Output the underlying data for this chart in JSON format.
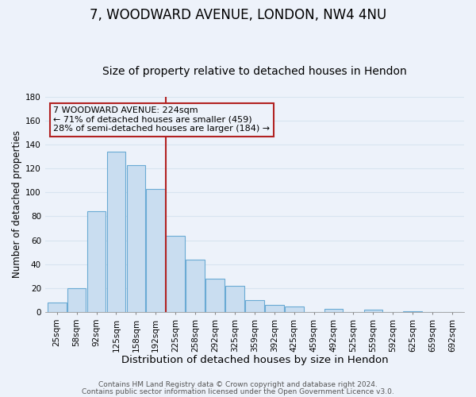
{
  "title1": "7, WOODWARD AVENUE, LONDON, NW4 4NU",
  "title2": "Size of property relative to detached houses in Hendon",
  "xlabel": "Distribution of detached houses by size in Hendon",
  "ylabel": "Number of detached properties",
  "bar_labels": [
    "25sqm",
    "58sqm",
    "92sqm",
    "125sqm",
    "158sqm",
    "192sqm",
    "225sqm",
    "258sqm",
    "292sqm",
    "325sqm",
    "359sqm",
    "392sqm",
    "425sqm",
    "459sqm",
    "492sqm",
    "525sqm",
    "559sqm",
    "592sqm",
    "625sqm",
    "659sqm",
    "692sqm"
  ],
  "bar_values": [
    8,
    20,
    84,
    134,
    123,
    103,
    64,
    44,
    28,
    22,
    10,
    6,
    5,
    0,
    3,
    0,
    2,
    0,
    1,
    0,
    0
  ],
  "bar_color": "#c9ddf0",
  "bar_edge_color": "#6aaad4",
  "vline_index": 6,
  "vline_color": "#b22222",
  "ylim": [
    0,
    180
  ],
  "yticks": [
    0,
    20,
    40,
    60,
    80,
    100,
    120,
    140,
    160,
    180
  ],
  "annotation_line1": "7 WOODWARD AVENUE: 224sqm",
  "annotation_line2": "← 71% of detached houses are smaller (459)",
  "annotation_line3": "28% of semi-detached houses are larger (184) →",
  "annotation_box_edge": "#b22222",
  "footer1": "Contains HM Land Registry data © Crown copyright and database right 2024.",
  "footer2": "Contains public sector information licensed under the Open Government Licence v3.0.",
  "background_color": "#edf2fa",
  "grid_color": "#d8e4f0",
  "title1_fontsize": 12,
  "title2_fontsize": 10,
  "xlabel_fontsize": 9.5,
  "ylabel_fontsize": 8.5,
  "tick_fontsize": 7.5,
  "annot_fontsize": 8,
  "footer_fontsize": 6.5
}
